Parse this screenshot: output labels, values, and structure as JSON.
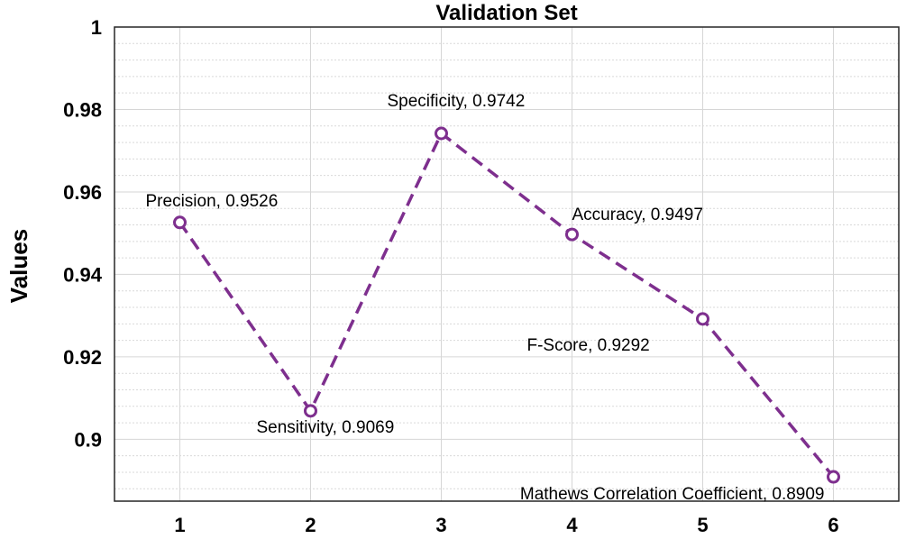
{
  "chart_data": {
    "type": "line",
    "title": "Validation Set",
    "xlabel": "",
    "ylabel": "Values",
    "x": [
      1,
      2,
      3,
      4,
      5,
      6
    ],
    "xlim": [
      0.5,
      6.5
    ],
    "ylim": [
      0.885,
      1.0
    ],
    "xticks": [
      "1",
      "2",
      "3",
      "4",
      "5",
      "6"
    ],
    "yticks": [
      {
        "value": 0.9,
        "label": "0.9"
      },
      {
        "value": 0.92,
        "label": "0.92"
      },
      {
        "value": 0.94,
        "label": "0.94"
      },
      {
        "value": 0.96,
        "label": "0.96"
      },
      {
        "value": 0.98,
        "label": "0.98"
      },
      {
        "value": 1.0,
        "label": "1"
      }
    ],
    "grid": true,
    "series": [
      {
        "name": "Validation Set",
        "color": "#7e2f8e",
        "values": [
          0.9526,
          0.9069,
          0.9742,
          0.9497,
          0.9292,
          0.8909
        ],
        "point_labels": [
          "Precision, 0.9526",
          "Sensitivity, 0.9069",
          "Specificity, 0.9742",
          "Accuracy, 0.9497",
          "F-Score, 0.9292",
          "Mathews Correlation Coefficient, 0.8909"
        ]
      }
    ]
  }
}
